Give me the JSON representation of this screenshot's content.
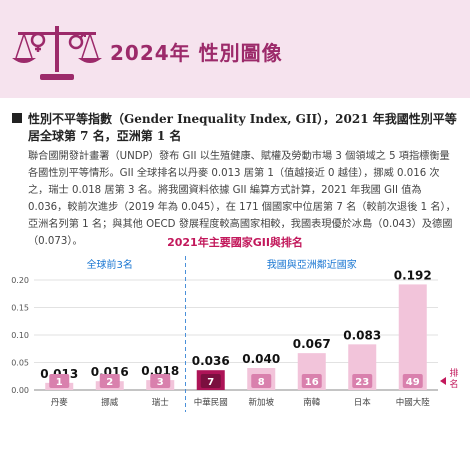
{
  "header": {
    "title": "2024年 性別圖像"
  },
  "section": {
    "heading": "性別不平等指數（Gender Inequality Index, GII），2021 年我國性別平等居全球第 7 名，亞洲第 1 名",
    "paragraph": "聯合國開發計畫署（UNDP）發布 GII 以生殖健康、賦權及勞動市場 3 個領域之 5 項指標衡量各國性別平等情形。GII 全球排名以丹麥 0.013 居第 1（值越接近 0 越佳），挪威 0.016 次之，瑞士 0.018 居第 3 名。將我國資料依據 GII 編算方式計算，2021 年我國 GII 值為 0.036，較前次進步（2019 年為 0.045），在 171 個國家中位居第 7 名（較前次退後 1 名），亞洲名列第 1 名；與其他 OECD 發展程度較高國家相較，我國表現優於冰島（0.043）及德國（0.073）。"
  },
  "colors": {
    "brand": "#9c2a6a",
    "bar": "#f2c4da",
    "bar_highlight": "#f5b9d4",
    "taiwan_bar": "#ad1457",
    "rank_box": "#d980ad",
    "rank_box_taiwan": "#7b0f3f",
    "group_label": "#1976d2",
    "title": "#c2185b",
    "divider": "#4a90d9"
  },
  "chart_data": {
    "type": "bar",
    "title": "2021年主要國家GII與排名",
    "groups": [
      {
        "label": "全球前3名",
        "categories": [
          "丹麥",
          "挪威",
          "瑞士"
        ]
      },
      {
        "label": "我國與亞洲鄰近國家",
        "categories": [
          "中華民國",
          "新加坡",
          "南韓",
          "日本",
          "中國大陸"
        ]
      }
    ],
    "categories": [
      "丹麥",
      "挪威",
      "瑞士",
      "中華民國",
      "新加坡",
      "南韓",
      "日本",
      "中國大陸"
    ],
    "values": [
      0.013,
      0.016,
      0.018,
      0.036,
      0.04,
      0.067,
      0.083,
      0.192
    ],
    "value_labels": [
      "0.013",
      "0.016",
      "0.018",
      "0.036",
      "0.040",
      "0.067",
      "0.083",
      "0.192"
    ],
    "ranks": [
      "1",
      "2",
      "3",
      "7",
      "8",
      "16",
      "23",
      "49"
    ],
    "highlight_category": "中華民國",
    "yticks": [
      "0.00",
      "0.05",
      "0.10",
      "0.15",
      "0.20"
    ],
    "ylim": [
      0,
      0.2
    ],
    "xlabel": "",
    "ylabel": "",
    "legend": "排名",
    "grid": true
  }
}
